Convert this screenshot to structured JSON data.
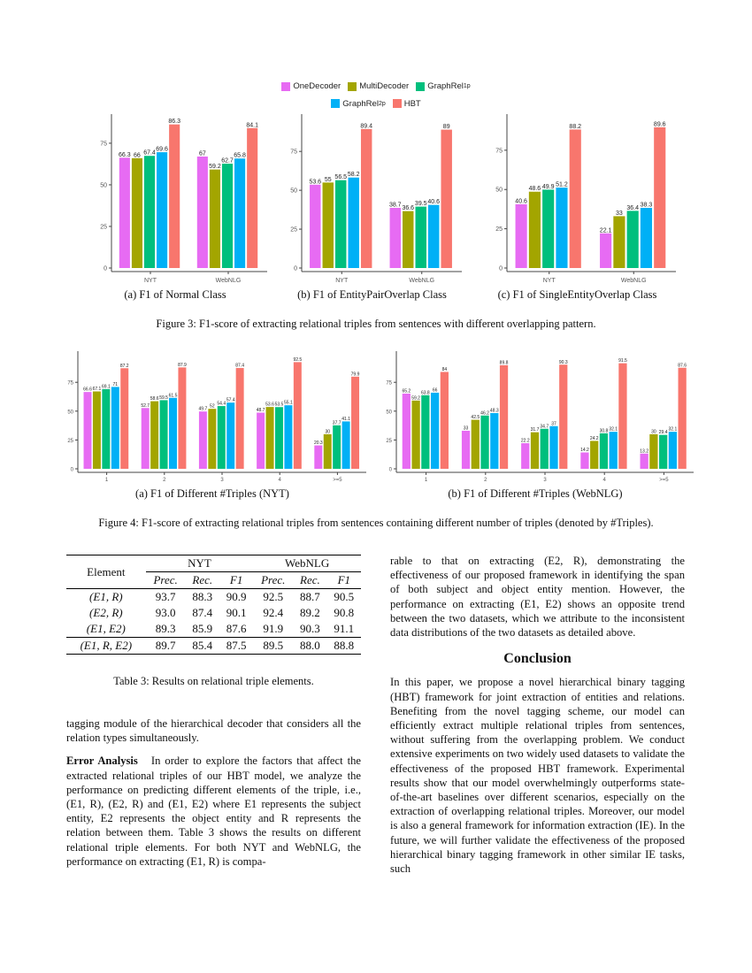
{
  "colors": {
    "OneDecoder": "#E76BF3",
    "MultiDecoder": "#A3A500",
    "GraphRel1p": "#00BF7D",
    "GraphRel2p": "#00B0F6",
    "HBT": "#F8766D"
  },
  "legend": {
    "items": [
      {
        "name": "OneDecoder",
        "sub": ""
      },
      {
        "name": "MultiDecoder",
        "sub": ""
      },
      {
        "name": "GraphRel",
        "sub": "1p"
      },
      {
        "name": "GraphRel",
        "sub": "2p"
      },
      {
        "name": "HBT",
        "sub": ""
      }
    ]
  },
  "chart_data": [
    {
      "id": "fig3a",
      "type": "bar",
      "caption": "(a) F1 of Normal Class",
      "categories": [
        "NYT",
        "WebNLG"
      ],
      "ylim": [
        0,
        92.5
      ],
      "yticks": [
        0,
        25,
        50,
        75
      ],
      "series": [
        {
          "name": "OneDecoder",
          "values": [
            66.3,
            67
          ]
        },
        {
          "name": "MultiDecoder",
          "values": [
            66,
            59.2
          ]
        },
        {
          "name": "GraphRel1p",
          "values": [
            67.4,
            62.7
          ]
        },
        {
          "name": "GraphRel2p",
          "values": [
            69.6,
            65.8
          ]
        },
        {
          "name": "HBT",
          "values": [
            86.3,
            84.1
          ]
        }
      ]
    },
    {
      "id": "fig3b",
      "type": "bar",
      "caption": "(b) F1 of EntityPairOverlap Class",
      "categories": [
        "NYT",
        "WebNLG"
      ],
      "ylim": [
        0,
        99
      ],
      "yticks": [
        0,
        25,
        50,
        75
      ],
      "series": [
        {
          "name": "OneDecoder",
          "values": [
            53.6,
            38.7
          ]
        },
        {
          "name": "MultiDecoder",
          "values": [
            55,
            36.6
          ]
        },
        {
          "name": "GraphRel1p",
          "values": [
            56.5,
            39.5
          ]
        },
        {
          "name": "GraphRel2p",
          "values": [
            58.2,
            40.6
          ]
        },
        {
          "name": "HBT",
          "values": [
            89.4,
            89
          ]
        }
      ]
    },
    {
      "id": "fig3c",
      "type": "bar",
      "caption": "(c) F1 of SingleEntityOverlap Class",
      "categories": [
        "NYT",
        "WebNLG"
      ],
      "ylim": [
        0,
        98
      ],
      "yticks": [
        0,
        25,
        50,
        75
      ],
      "series": [
        {
          "name": "OneDecoder",
          "values": [
            40.6,
            22.1
          ]
        },
        {
          "name": "MultiDecoder",
          "values": [
            48.6,
            33
          ]
        },
        {
          "name": "GraphRel1p",
          "values": [
            49.9,
            36.4
          ]
        },
        {
          "name": "GraphRel2p",
          "values": [
            51.2,
            38.3
          ]
        },
        {
          "name": "HBT",
          "values": [
            88.2,
            89.6
          ]
        }
      ]
    },
    {
      "id": "fig4a",
      "type": "bar",
      "caption": "(a) F1 of Different #Triples (NYT)",
      "categories": [
        "1",
        "2",
        "3",
        "4",
        ">=5"
      ],
      "ylim": [
        0,
        102
      ],
      "yticks": [
        0,
        25,
        50,
        75
      ],
      "series": [
        {
          "name": "OneDecoder",
          "values": [
            66.6,
            52.7,
            49.7,
            48.7,
            20.3
          ]
        },
        {
          "name": "MultiDecoder",
          "values": [
            67.1,
            58.6,
            52,
            53.6,
            30
          ]
        },
        {
          "name": "GraphRel1p",
          "values": [
            69.1,
            59.5,
            54.4,
            53.5,
            37.7
          ]
        },
        {
          "name": "GraphRel2p",
          "values": [
            71,
            61.5,
            57.4,
            55.1,
            41.1
          ]
        },
        {
          "name": "HBT",
          "values": [
            87.2,
            87.9,
            87.4,
            92.5,
            79.9
          ]
        }
      ]
    },
    {
      "id": "fig4b",
      "type": "bar",
      "caption": "(b) F1 of Different #Triples (WebNLG)",
      "categories": [
        "1",
        "2",
        "3",
        "4",
        ">=5"
      ],
      "ylim": [
        0,
        102
      ],
      "yticks": [
        0,
        25,
        50,
        75
      ],
      "series": [
        {
          "name": "OneDecoder",
          "values": [
            65.2,
            33,
            22.2,
            14.2,
            13.2
          ]
        },
        {
          "name": "MultiDecoder",
          "values": [
            59.2,
            42.5,
            31.7,
            24.2,
            30
          ]
        },
        {
          "name": "GraphRel1p",
          "values": [
            63.8,
            46.2,
            34.7,
            30.8,
            29.4
          ]
        },
        {
          "name": "GraphRel2p",
          "values": [
            66,
            48.3,
            37,
            32.1,
            32.1
          ]
        },
        {
          "name": "HBT",
          "values": [
            84,
            89.8,
            90.3,
            91.5,
            87.6
          ]
        }
      ]
    }
  ],
  "figure3_caption": "Figure 3: F1-score of extracting relational triples from sentences with different overlapping pattern.",
  "figure4_caption": "Figure 4: F1-score of extracting relational triples from sentences containing different number of triples (denoted by #Triples).",
  "table": {
    "caption": "Table 3: Results on relational triple elements.",
    "element_header": "Element",
    "groups": [
      "NYT",
      "WebNLG"
    ],
    "subheaders": [
      "Prec.",
      "Rec.",
      "F1",
      "Prec.",
      "Rec.",
      "F1"
    ],
    "rows": [
      [
        "(E1, R)",
        "93.7",
        "88.3",
        "90.9",
        "92.5",
        "88.7",
        "90.5"
      ],
      [
        "(E2, R)",
        "93.0",
        "87.4",
        "90.1",
        "92.4",
        "89.2",
        "90.8"
      ],
      [
        "(E1, E2)",
        "89.3",
        "85.9",
        "87.6",
        "91.9",
        "90.3",
        "91.1"
      ]
    ],
    "final_row": [
      "(E1, R, E2)",
      "89.7",
      "85.4",
      "87.5",
      "89.5",
      "88.0",
      "88.8"
    ]
  },
  "left_col": {
    "p1": "tagging module of the hierarchical decoder that considers all the relation types simultaneously.",
    "p2_heading": "Error Analysis",
    "p2": "In order to explore the factors that affect the extracted relational triples of our HBT model, we analyze the performance on predicting different elements of the triple, i.e., (E1, R), (E2, R) and (E1, E2) where E1 represents the subject entity, E2 represents the object entity and R represents the relation between them. Table 3 shows the results on different relational triple elements. For both NYT and WebNLG, the performance on extracting (E1, R) is compa-"
  },
  "right_col": {
    "p1": "rable to that on extracting (E2, R), demonstrating the effectiveness of our proposed framework in identifying the span of both subject and object entity mention. However, the performance on extracting (E1, E2) shows an opposite trend between the two datasets, which we attribute to the inconsistent data distributions of the two datasets as detailed above.",
    "heading": "Conclusion",
    "p2": "In this paper, we propose a novel hierarchical binary tagging (HBT) framework for joint extraction of entities and relations. Benefiting from the novel tagging scheme, our model can efficiently extract multiple relational triples from sentences, without suffering from the overlapping problem. We conduct extensive experiments on two widely used datasets to validate the effectiveness of the proposed HBT framework. Experimental results show that our model overwhelmingly outperforms state-of-the-art baselines over different scenarios, especially on the extraction of overlapping relational triples. Moreover, our model is also a general framework for information extraction (IE). In the future, we will further validate the effectiveness of the proposed hierarchical binary tagging framework in other similar IE tasks, such"
  }
}
